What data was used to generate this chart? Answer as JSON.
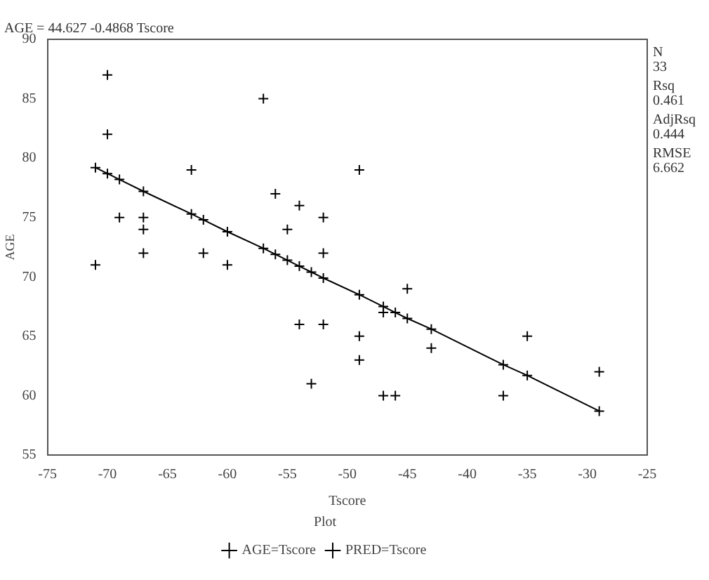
{
  "chart_data": {
    "type": "scatter",
    "title": "AGE = 44.627 -0.4868 Tscore",
    "xlabel": "Tscore",
    "ylabel": "AGE",
    "legend_title": "Plot",
    "xlim": [
      -75,
      -25
    ],
    "xticks": [
      -75,
      -70,
      -65,
      -60,
      -55,
      -50,
      -45,
      -40,
      -35,
      -30,
      -25
    ],
    "ylim": [
      55,
      90
    ],
    "yticks": [
      55,
      60,
      65,
      70,
      75,
      80,
      85,
      90
    ],
    "grid": false,
    "legend": "bottom",
    "marker": "cross",
    "annotations": [
      "N",
      "33",
      "Rsq",
      "0.461",
      "AdjRsq",
      "0.444",
      "RMSE",
      "6.662"
    ],
    "series": [
      {
        "name": "AGE=Tscore",
        "type": "scatter",
        "color": "#000000",
        "x": [
          -70,
          -57,
          -70,
          -63,
          -56,
          -54,
          -69,
          -67,
          -52,
          -67,
          -55,
          -67,
          -62,
          -52,
          -71,
          -60,
          -54,
          -52,
          -53,
          -49,
          -45,
          -49,
          -35,
          -43,
          -49,
          -47,
          -47,
          -46,
          -37,
          -29
        ],
        "values": [
          87,
          85,
          82,
          79,
          77,
          76,
          75,
          75,
          75,
          74,
          74,
          72,
          72,
          72,
          71,
          71,
          66,
          66,
          61,
          79,
          69,
          65,
          65,
          64,
          63,
          67,
          60,
          60,
          60,
          62
        ]
      },
      {
        "name": "PRED=Tscore",
        "type": "line",
        "line_style": "solid",
        "color": "#000000",
        "x": [
          -71,
          -70,
          -69,
          -67,
          -63,
          -62,
          -60,
          -57,
          -56,
          -55,
          -54,
          -53,
          -52,
          -49,
          -47,
          -46,
          -45,
          -43,
          -37,
          -35,
          -29
        ],
        "values": [
          79.2,
          78.7,
          78.2,
          77.2,
          75.3,
          74.8,
          73.8,
          72.4,
          71.9,
          71.4,
          70.9,
          70.4,
          69.9,
          68.5,
          67.5,
          67.0,
          66.5,
          65.6,
          62.6,
          61.7,
          58.7
        ]
      }
    ]
  }
}
